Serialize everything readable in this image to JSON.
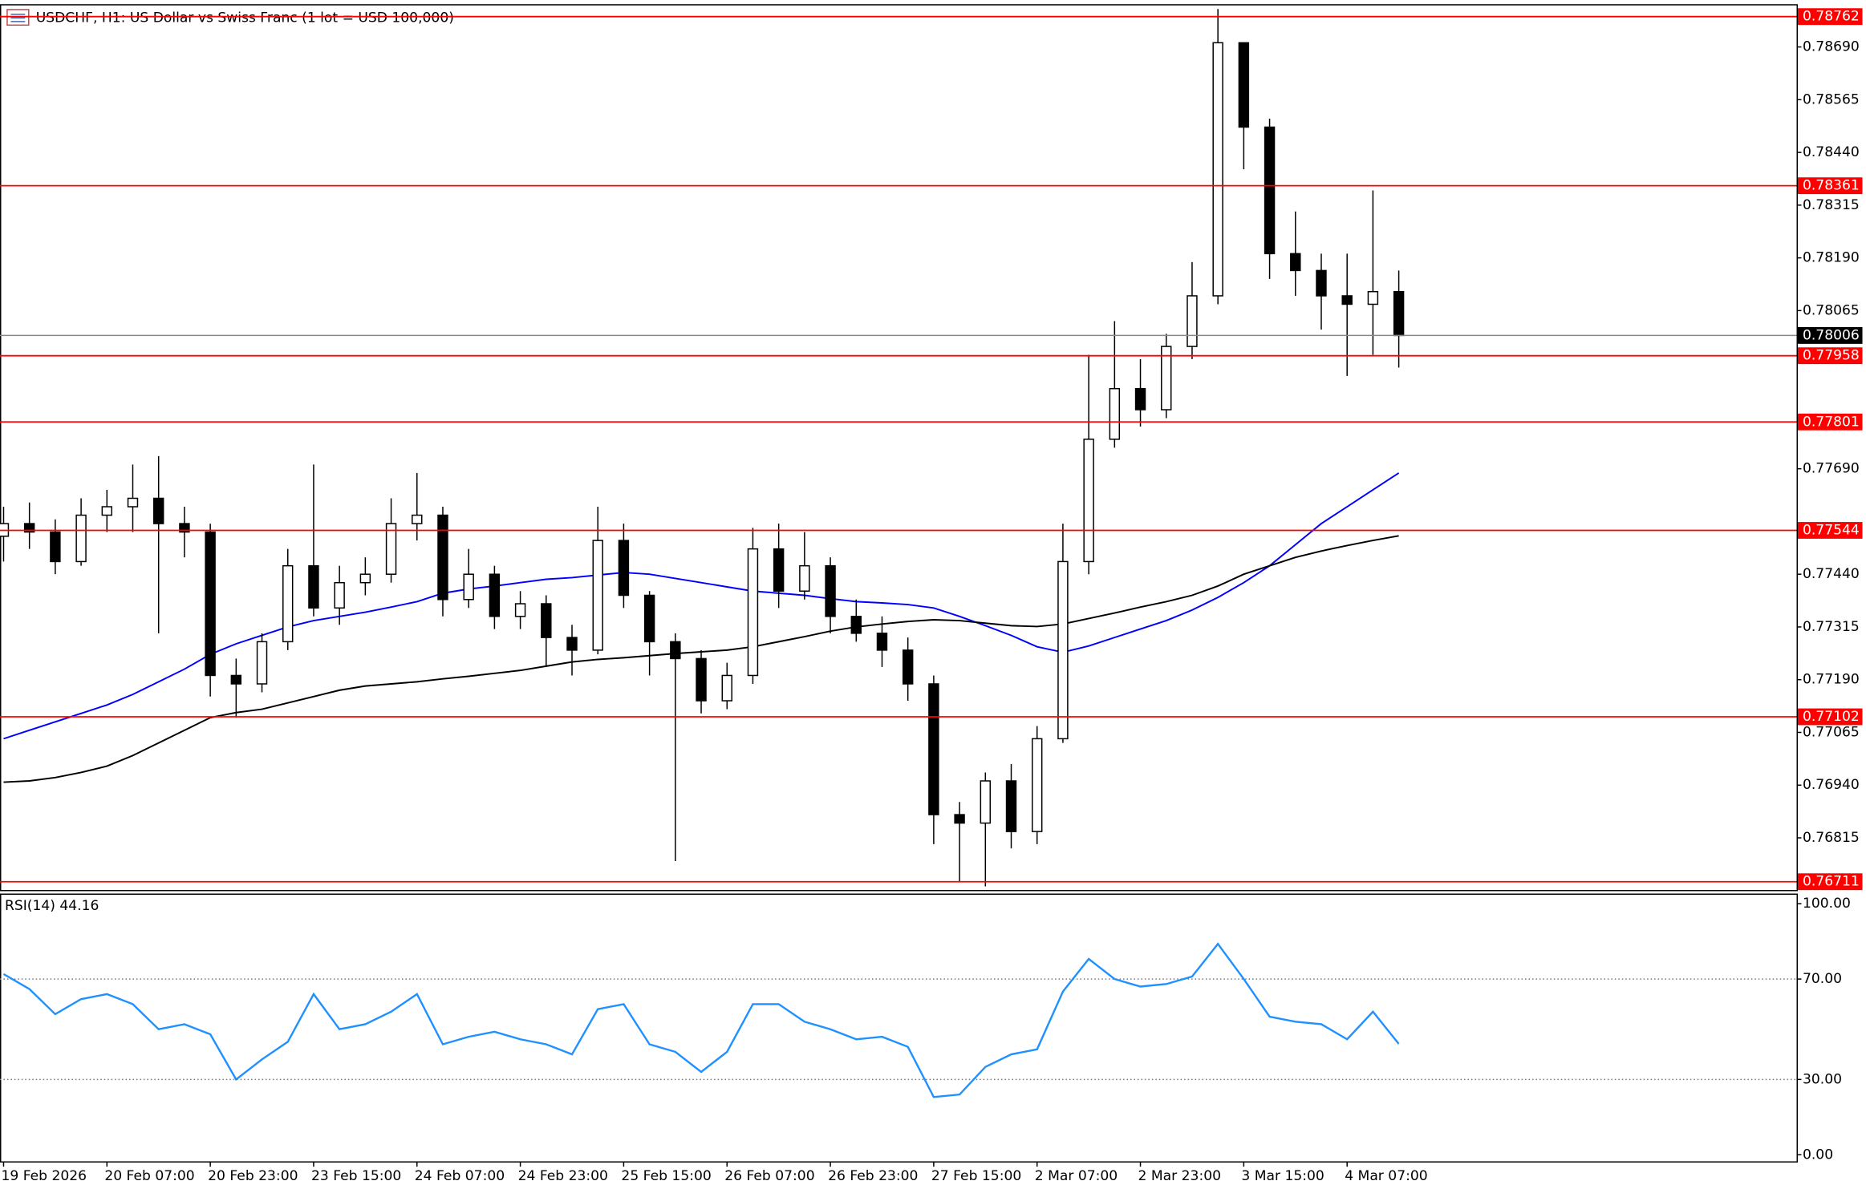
{
  "chart_data": [
    {
      "type": "candlestick",
      "title": "USDCHF, H1:  US Dollar vs Swiss Franc (1 lot = USD 100,000)",
      "open": [
        0.7753,
        0.7756,
        0.7754,
        0.7747,
        0.7758,
        0.776,
        0.7762,
        0.7756,
        0.7754,
        0.772,
        0.7718,
        0.7728,
        0.7746,
        0.7736,
        0.7742,
        0.7744,
        0.7756,
        0.7758,
        0.7738,
        0.7744,
        0.7734,
        0.7737,
        0.7729,
        0.7726,
        0.7752,
        0.7739,
        0.7728,
        0.7724,
        0.7714,
        0.772,
        0.775,
        0.774,
        0.7746,
        0.7734,
        0.773,
        0.7726,
        0.7718,
        0.7687,
        0.7685,
        0.7695,
        0.7683,
        0.7705,
        0.7747,
        0.7776,
        0.7788,
        0.7783,
        0.7798,
        0.781,
        0.787,
        0.785,
        0.782,
        0.7816,
        0.781,
        0.7808,
        0.7811
      ],
      "high": [
        0.776,
        0.7761,
        0.7757,
        0.7762,
        0.7764,
        0.777,
        0.7772,
        0.776,
        0.7756,
        0.7724,
        0.773,
        0.775,
        0.777,
        0.7746,
        0.7748,
        0.7762,
        0.7768,
        0.776,
        0.775,
        0.7746,
        0.774,
        0.7739,
        0.7732,
        0.776,
        0.7756,
        0.774,
        0.773,
        0.7726,
        0.7723,
        0.7755,
        0.7756,
        0.7754,
        0.7748,
        0.7738,
        0.7734,
        0.7729,
        0.772,
        0.769,
        0.7697,
        0.7699,
        0.7708,
        0.7756,
        0.7796,
        0.7804,
        0.7795,
        0.7801,
        0.7818,
        0.7878,
        0.787,
        0.7852,
        0.783,
        0.782,
        0.782,
        0.7835,
        0.7816
      ],
      "low": [
        0.7747,
        0.775,
        0.7744,
        0.7746,
        0.7754,
        0.7754,
        0.773,
        0.7748,
        0.7715,
        0.771,
        0.7716,
        0.7726,
        0.7734,
        0.7732,
        0.7739,
        0.7742,
        0.7752,
        0.7734,
        0.7736,
        0.7731,
        0.7731,
        0.7722,
        0.772,
        0.7725,
        0.7736,
        0.772,
        0.7676,
        0.7711,
        0.7712,
        0.7718,
        0.7736,
        0.7738,
        0.773,
        0.7728,
        0.7722,
        0.7714,
        0.768,
        0.7671,
        0.767,
        0.7679,
        0.768,
        0.7704,
        0.7744,
        0.7774,
        0.7779,
        0.7781,
        0.7795,
        0.7808,
        0.784,
        0.7814,
        0.781,
        0.7802,
        0.7791,
        0.7796,
        0.7793
      ],
      "close": [
        0.7756,
        0.7754,
        0.7747,
        0.7758,
        0.776,
        0.7762,
        0.7756,
        0.7754,
        0.772,
        0.7718,
        0.7728,
        0.7746,
        0.7736,
        0.7742,
        0.7744,
        0.7756,
        0.7758,
        0.7738,
        0.7744,
        0.7734,
        0.7737,
        0.7729,
        0.7726,
        0.7752,
        0.7739,
        0.7728,
        0.7724,
        0.7714,
        0.772,
        0.775,
        0.774,
        0.7746,
        0.7734,
        0.773,
        0.7726,
        0.7718,
        0.7687,
        0.7685,
        0.7695,
        0.7683,
        0.7705,
        0.7747,
        0.7776,
        0.7788,
        0.7783,
        0.7798,
        0.781,
        0.787,
        0.785,
        0.782,
        0.7816,
        0.781,
        0.7808,
        0.7811,
        0.78006
      ],
      "up_color": "#ffffff",
      "down_color": "#000000",
      "series": [
        {
          "color": "#0000ff",
          "values": [
            0.7705,
            0.7707,
            0.7709,
            0.7711,
            0.7713,
            0.77155,
            0.77185,
            0.77215,
            0.7725,
            0.77275,
            0.77295,
            0.77315,
            0.7733,
            0.7734,
            0.7735,
            0.77362,
            0.77375,
            0.77395,
            0.77405,
            0.77412,
            0.7742,
            0.77428,
            0.77432,
            0.77438,
            0.77444,
            0.7744,
            0.7743,
            0.7742,
            0.7741,
            0.774,
            0.77395,
            0.7739,
            0.77382,
            0.77375,
            0.77372,
            0.77368,
            0.7736,
            0.7734,
            0.77318,
            0.77295,
            0.77268,
            0.77255,
            0.7727,
            0.7729,
            0.7731,
            0.7733,
            0.77355,
            0.77385,
            0.7742,
            0.7746,
            0.7751,
            0.7756,
            0.776,
            0.7764,
            0.7768
          ]
        },
        {
          "color": "#000000",
          "values": [
            0.76947,
            0.7695,
            0.76958,
            0.7697,
            0.76985,
            0.7701,
            0.7704,
            0.7707,
            0.771,
            0.77112,
            0.7712,
            0.77135,
            0.7715,
            0.77165,
            0.77175,
            0.7718,
            0.77185,
            0.77192,
            0.77198,
            0.77205,
            0.77212,
            0.77222,
            0.77232,
            0.77238,
            0.77242,
            0.77247,
            0.77252,
            0.77256,
            0.7726,
            0.77268,
            0.7728,
            0.77292,
            0.77305,
            0.77315,
            0.77322,
            0.77328,
            0.77332,
            0.7733,
            0.77324,
            0.77318,
            0.77316,
            0.77322,
            0.77335,
            0.77348,
            0.77362,
            0.77375,
            0.7739,
            0.77412,
            0.7744,
            0.7746,
            0.7748,
            0.77495,
            0.77508,
            0.7752,
            0.77531
          ]
        }
      ],
      "levels": [
        0.78762,
        0.78361,
        0.77958,
        0.77801,
        0.77544,
        0.77102,
        0.76711
      ],
      "level_color": "#ff0000",
      "last_price": 0.78006,
      "ylim": [
        0.7669,
        0.7879
      ],
      "yticks": [
        {
          "value": 0.7869,
          "label": "0.78690"
        },
        0.78565,
        {
          "value": 0.7844,
          "label": "0.78440"
        },
        0.78315,
        {
          "value": 0.7819,
          "label": "0.78190"
        },
        0.78065,
        {
          "value": 0.7769,
          "label": "0.77690"
        },
        {
          "value": 0.7744,
          "label": "0.77440"
        },
        0.77315,
        {
          "value": 0.7719,
          "label": "0.77190"
        },
        0.77065,
        {
          "value": 0.7694,
          "label": "0.76940"
        },
        0.76815
      ],
      "xticks": [
        {
          "value": 0,
          "label": "19 Feb 2026"
        },
        {
          "value": 4,
          "label": "20 Feb 07:00"
        },
        {
          "value": 8,
          "label": "20 Feb 23:00"
        },
        {
          "value": 12,
          "label": "23 Feb 15:00"
        },
        {
          "value": 16,
          "label": "24 Feb 07:00"
        },
        {
          "value": 20,
          "label": "24 Feb 23:00"
        },
        {
          "value": 24,
          "label": "25 Feb 15:00"
        },
        {
          "value": 28,
          "label": "26 Feb 07:00"
        },
        {
          "value": 32,
          "label": "26 Feb 23:00"
        },
        {
          "value": 36,
          "label": "27 Feb 15:00"
        },
        {
          "value": 40,
          "label": "2 Mar 07:00"
        },
        {
          "value": 44,
          "label": "2 Mar 23:00"
        },
        {
          "value": 48,
          "label": "3 Mar 15:00"
        },
        {
          "value": 52,
          "label": "4 Mar 07:00"
        }
      ]
    },
    {
      "type": "line",
      "title": "RSI(14) 44.16",
      "color": "#1e90ff",
      "values": [
        72,
        66,
        56,
        62,
        64,
        60,
        50,
        52,
        48,
        30,
        38,
        45,
        64,
        50,
        52,
        57,
        64,
        44,
        47,
        49,
        46,
        44,
        40,
        58,
        60,
        44,
        41,
        33,
        41,
        60,
        60,
        53,
        50,
        46,
        47,
        43,
        23,
        24,
        35,
        40,
        42,
        65,
        78,
        70,
        67,
        68,
        71,
        84,
        70,
        55,
        53,
        52,
        46,
        57,
        44.16
      ],
      "ylim": [
        0,
        100
      ],
      "yticks": [
        {
          "value": 100,
          "label": "100.00"
        },
        {
          "value": 70,
          "label": "70.00"
        },
        {
          "value": 30,
          "label": "30.00"
        },
        {
          "value": 0,
          "label": "0.00"
        }
      ],
      "levels": [
        70,
        30
      ]
    }
  ]
}
